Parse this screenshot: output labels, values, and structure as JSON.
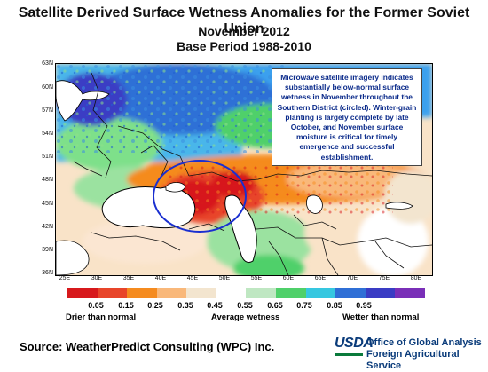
{
  "title": {
    "line1": "Satellite Derived Surface Wetness Anomalies for the Former Soviet Union",
    "line2": "November 2012",
    "line3": "Base Period 1988-2010"
  },
  "map": {
    "lat_labels": [
      "63N",
      "60N",
      "57N",
      "54N",
      "51N",
      "48N",
      "45N",
      "42N",
      "39N",
      "36N"
    ],
    "lon_labels": [
      "25E",
      "30E",
      "35E",
      "40E",
      "45E",
      "50E",
      "55E",
      "60E",
      "65E",
      "70E",
      "75E",
      "80E"
    ],
    "callout": "Microwave satellite imagery indicates substantially below-normal surface wetness in November throughout the Southern District (circled).  Winter-grain planting is largely complete by late October, and November surface moisture is critical for timely emergence and successful establishment.",
    "circle_color": "#1a2fd0"
  },
  "legend": {
    "tick_labels": [
      "0.05",
      "0.15",
      "0.25",
      "0.35",
      "0.45",
      "0.55",
      "0.65",
      "0.75",
      "0.85",
      "0.95"
    ],
    "colors": [
      "#d7191c",
      "#e8452a",
      "#f58b1f",
      "#f9b87a",
      "#f3e5cf",
      "#ffffff",
      "#bfe7c2",
      "#4fd06a",
      "#36c7e0",
      "#2f6fd6",
      "#3a3cc4",
      "#7a2fb8"
    ],
    "left_label": "Drier than normal",
    "center_label": "Average wetness",
    "right_label": "Wetter than normal"
  },
  "footer": {
    "source": "Source: WeatherPredict Consulting (WPC) Inc.",
    "logo_text": "USDA",
    "agency_line1": "Office of Global Analysis",
    "agency_line2": "Foreign Agricultural Service"
  }
}
